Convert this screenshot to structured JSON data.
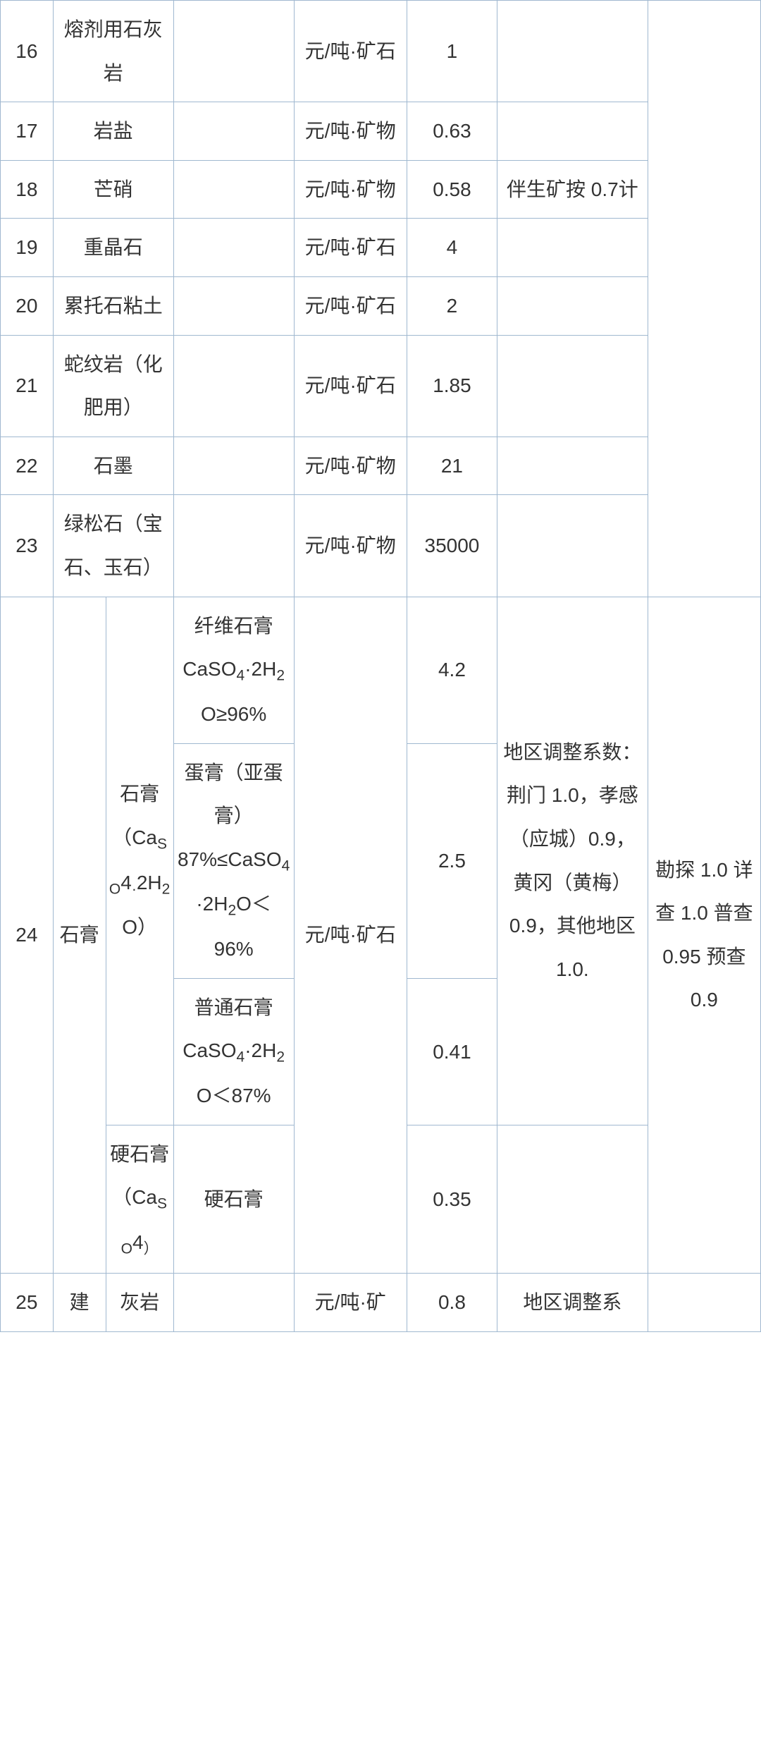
{
  "rows": [
    {
      "num": "16",
      "name": "熔剂用石灰岩",
      "spec": "",
      "unit": "元/吨·矿石",
      "price": "1",
      "note1": "",
      "note2_span": true
    },
    {
      "num": "17",
      "name": "岩盐",
      "spec": "",
      "unit": "元/吨·矿物",
      "price": "0.63",
      "note1": ""
    },
    {
      "num": "18",
      "name": "芒硝",
      "spec": "",
      "unit": "元/吨·矿物",
      "price": "0.58",
      "note1": "伴生矿按 0.7计"
    },
    {
      "num": "19",
      "name": "重晶石",
      "spec": "",
      "unit": "元/吨·矿石",
      "price": "4",
      "note1": ""
    },
    {
      "num": "20",
      "name": "累托石粘土",
      "spec": "",
      "unit": "元/吨·矿石",
      "price": "2",
      "note1": ""
    },
    {
      "num": "21",
      "name": "蛇纹岩（化肥用）",
      "spec": "",
      "unit": "元/吨·矿石",
      "price": "1.85",
      "note1": ""
    },
    {
      "num": "22",
      "name": "石墨",
      "spec": "",
      "unit": "元/吨·矿物",
      "price": "21",
      "note1": ""
    },
    {
      "num": "23",
      "name": "绿松石（宝石、玉石）",
      "spec": "",
      "unit": "元/吨·矿物",
      "price": "35000",
      "note1": ""
    }
  ],
  "row24": {
    "num": "24",
    "name_a": "石膏",
    "name_b1_parts": [
      "石膏（Ca",
      "SO",
      "4",
      "·",
      "2H",
      "2",
      "O）"
    ],
    "name_b2_parts": [
      "硬石膏（Ca",
      "SO",
      "4",
      "）"
    ],
    "specs": [
      {
        "parts": [
          "纤维石膏CaSO",
          "4",
          "·2H",
          "2",
          "O≥96%"
        ],
        "price": "4.2"
      },
      {
        "parts": [
          "蛋膏（亚蛋膏）87%≤CaSO",
          "4",
          "·2H",
          "2",
          "O＜96%"
        ],
        "price": "2.5"
      },
      {
        "parts": [
          "普通石膏CaSO",
          "4",
          "·2H",
          "2",
          "O＜87%"
        ],
        "price": "0.41"
      },
      {
        "plain": "硬石膏",
        "price": "0.35"
      }
    ],
    "unit": "元/吨·矿石",
    "note1": "地区调整系数：荆门 1.0，孝感（应城）0.9，黄冈（黄梅）0.9，其他地区 1.0.",
    "note2": "勘探 1.0 详查 1.0 普查 0.95 预查 0.9"
  },
  "row25": {
    "num": "25",
    "name_a": "建",
    "name_b": "灰岩",
    "spec": "",
    "unit": "元/吨·矿",
    "price": "0.8",
    "note1": "地区调整系"
  },
  "colors": {
    "border": "#a0b8d0",
    "text": "#333333",
    "background": "#ffffff"
  },
  "font_size": 28,
  "line_height": 2.2
}
